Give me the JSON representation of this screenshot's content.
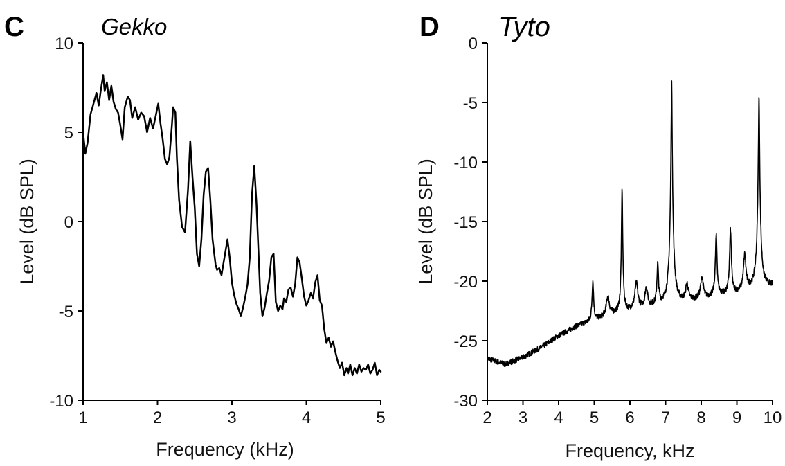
{
  "chart_data": [
    {
      "type": "line",
      "panel_label": "C",
      "title": "Gekko",
      "xlabel": "Frequency (kHz)",
      "ylabel": "Level (dB SPL)",
      "xlim": [
        1,
        5
      ],
      "ylim": [
        -10,
        10
      ],
      "xticks": [
        "1",
        "2",
        "3",
        "4",
        "5"
      ],
      "yticks": [
        "-10",
        "-5",
        "0",
        "5",
        "10"
      ],
      "grid": false,
      "legend": "none",
      "line_color": "#000000",
      "series": [
        {
          "x": [
            1.0,
            1.03,
            1.06,
            1.1,
            1.14,
            1.18,
            1.21,
            1.24,
            1.27,
            1.29,
            1.32,
            1.35,
            1.38,
            1.41,
            1.44,
            1.47,
            1.5,
            1.53,
            1.56,
            1.6,
            1.63,
            1.66,
            1.7,
            1.74,
            1.78,
            1.82,
            1.86,
            1.9,
            1.94,
            1.98,
            2.01,
            2.04,
            2.07,
            2.1,
            2.13,
            2.16,
            2.19,
            2.21,
            2.24,
            2.26,
            2.29,
            2.33,
            2.37,
            2.41,
            2.44,
            2.47,
            2.5,
            2.53,
            2.56,
            2.59,
            2.62,
            2.65,
            2.68,
            2.71,
            2.74,
            2.78,
            2.8,
            2.83,
            2.86,
            2.9,
            2.94,
            2.97,
            3.0,
            3.03,
            3.06,
            3.09,
            3.12,
            3.15,
            3.18,
            3.21,
            3.24,
            3.27,
            3.3,
            3.33,
            3.36,
            3.38,
            3.41,
            3.44,
            3.47,
            3.5,
            3.53,
            3.56,
            3.59,
            3.62,
            3.65,
            3.68,
            3.7,
            3.73,
            3.76,
            3.79,
            3.82,
            3.85,
            3.88,
            3.91,
            3.94,
            3.97,
            4.0,
            4.03,
            4.06,
            4.09,
            4.12,
            4.15,
            4.18,
            4.21,
            4.24,
            4.27,
            4.3,
            4.33,
            4.36,
            4.39,
            4.42,
            4.45,
            4.48,
            4.51,
            4.54,
            4.56,
            4.59,
            4.62,
            4.65,
            4.68,
            4.71,
            4.74,
            4.77,
            4.8,
            4.83,
            4.86,
            4.89,
            4.92,
            4.95,
            4.98,
            5.0
          ],
          "y": [
            5.0,
            3.8,
            4.4,
            6.0,
            6.6,
            7.2,
            6.5,
            7.4,
            8.2,
            7.3,
            7.8,
            6.8,
            7.6,
            6.7,
            6.3,
            6.1,
            5.4,
            4.6,
            6.4,
            7.0,
            6.8,
            5.8,
            6.4,
            5.7,
            6.1,
            5.9,
            5.0,
            5.8,
            5.2,
            6.0,
            6.6,
            5.5,
            4.6,
            3.5,
            3.2,
            3.6,
            5.2,
            6.4,
            6.1,
            3.6,
            1.2,
            -0.3,
            -0.6,
            1.8,
            4.5,
            2.5,
            0.8,
            -1.8,
            -2.5,
            -1.0,
            1.5,
            2.8,
            3.0,
            1.2,
            -1.0,
            -2.4,
            -2.7,
            -2.6,
            -3.0,
            -2.0,
            -1.0,
            -2.0,
            -3.4,
            -4.1,
            -4.6,
            -4.9,
            -5.3,
            -4.8,
            -4.2,
            -3.5,
            -2.0,
            1.5,
            3.1,
            1.0,
            -2.0,
            -4.0,
            -5.3,
            -4.8,
            -4.0,
            -3.3,
            -2.0,
            -1.8,
            -4.5,
            -5.0,
            -4.7,
            -4.9,
            -4.3,
            -4.5,
            -3.8,
            -3.7,
            -4.2,
            -3.5,
            -2.0,
            -2.3,
            -3.2,
            -4.2,
            -4.7,
            -4.4,
            -4.0,
            -4.3,
            -3.4,
            -3.0,
            -4.4,
            -4.7,
            -6.0,
            -6.8,
            -6.5,
            -7.0,
            -6.7,
            -7.3,
            -7.8,
            -8.2,
            -7.9,
            -8.6,
            -8.2,
            -8.5,
            -8.0,
            -8.6,
            -8.2,
            -8.5,
            -8.0,
            -8.4,
            -8.2,
            -8.3,
            -8.0,
            -8.5,
            -8.3,
            -7.9,
            -8.6,
            -8.3,
            -8.4
          ]
        }
      ]
    },
    {
      "type": "line",
      "panel_label": "D",
      "title": "Tyto",
      "xlabel": "Frequency, kHz",
      "ylabel": "Level (dB SPL)",
      "xlim": [
        2,
        10
      ],
      "ylim": [
        -30,
        0
      ],
      "xticks": [
        "2",
        "3",
        "4",
        "5",
        "6",
        "7",
        "8",
        "9",
        "10"
      ],
      "yticks": [
        "0",
        "-5",
        "-10",
        "-15",
        "-20",
        "-25",
        "-30"
      ],
      "grid": false,
      "legend": "none",
      "line_color": "#000000",
      "baseline": {
        "x": [
          2.0,
          2.5,
          3.0,
          3.5,
          4.0,
          4.5,
          5.0,
          5.5,
          6.0,
          6.5,
          7.0,
          7.5,
          8.0,
          8.5,
          9.0,
          9.5,
          10.0
        ],
        "y": [
          -26.5,
          -27.0,
          -26.4,
          -25.6,
          -24.6,
          -23.8,
          -23.3,
          -22.8,
          -22.5,
          -22.2,
          -22.0,
          -21.8,
          -21.5,
          -21.2,
          -21.0,
          -20.6,
          -20.4
        ]
      },
      "peaks": [
        {
          "freq": 4.96,
          "level": -20.0,
          "width": 0.022
        },
        {
          "freq": 5.38,
          "level": -21.3,
          "width": 0.045
        },
        {
          "freq": 5.78,
          "level": -12.2,
          "width": 0.013
        },
        {
          "freq": 6.18,
          "level": -20.2,
          "width": 0.045
        },
        {
          "freq": 6.46,
          "level": -20.6,
          "width": 0.04
        },
        {
          "freq": 6.78,
          "level": -18.6,
          "width": 0.022
        },
        {
          "freq": 7.17,
          "level": -3.2,
          "width": 0.011
        },
        {
          "freq": 7.6,
          "level": -20.3,
          "width": 0.04
        },
        {
          "freq": 8.02,
          "level": -19.7,
          "width": 0.04
        },
        {
          "freq": 8.42,
          "level": -16.2,
          "width": 0.022
        },
        {
          "freq": 8.82,
          "level": -15.7,
          "width": 0.022
        },
        {
          "freq": 9.22,
          "level": -17.8,
          "width": 0.035
        },
        {
          "freq": 9.62,
          "level": -4.5,
          "width": 0.013
        }
      ]
    }
  ]
}
